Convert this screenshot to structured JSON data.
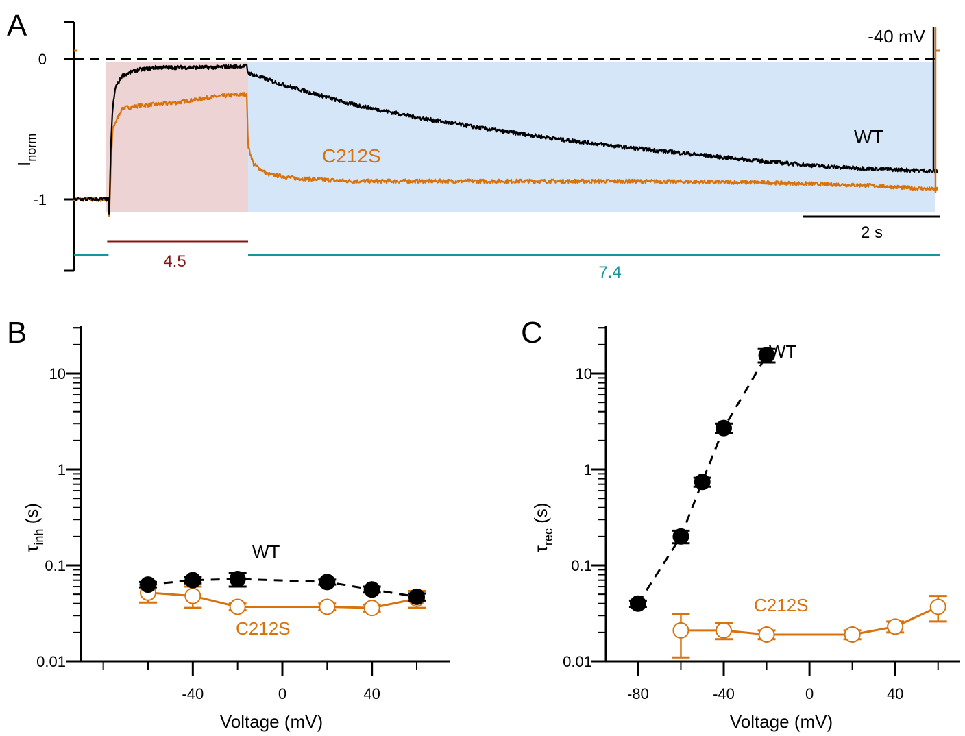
{
  "colors": {
    "wt": "#000000",
    "mut": "#d8720c",
    "inh_bg": "#edd3d3",
    "rec_bg": "#d4e6f8",
    "inh_bar": "#8a1414",
    "rec_bar": "#17949a"
  },
  "panel_labels": {
    "a": "A",
    "b": "B",
    "c": "C"
  },
  "chart_data": [
    {
      "panel": "A",
      "type": "line",
      "ylabel_main": "I",
      "ylabel_sub": "norm",
      "yticks": [
        "0",
        "-1"
      ],
      "ylim": [
        -1.5,
        0.25
      ],
      "xlim_s": [
        0,
        12.5
      ],
      "voltage_label": "-40 mV",
      "scale_bar_label": "2 s",
      "inh_time_label": "4.5",
      "rec_time_label": "7.4",
      "series": [
        {
          "name": "WT",
          "x": [
            0,
            0.5,
            0.51,
            0.53,
            0.56,
            0.6,
            0.7,
            0.9,
            1.2,
            1.5,
            2.0,
            2.5,
            2.52,
            3,
            4,
            5,
            6,
            7,
            8,
            9,
            10,
            11,
            12.5
          ],
          "y": [
            -1.0,
            -1.0,
            -1.15,
            -0.65,
            -0.35,
            -0.2,
            -0.12,
            -0.08,
            -0.06,
            -0.06,
            -0.06,
            -0.05,
            -0.1,
            -0.18,
            -0.32,
            -0.42,
            -0.5,
            -0.57,
            -0.63,
            -0.68,
            -0.73,
            -0.77,
            -0.8
          ]
        },
        {
          "name": "C212S",
          "x": [
            0,
            0.5,
            0.51,
            0.53,
            0.56,
            0.6,
            0.7,
            1.0,
            1.5,
            2.0,
            2.5,
            2.52,
            2.6,
            2.8,
            3.2,
            4,
            6,
            8,
            10,
            11.5,
            12.5
          ],
          "y": [
            -1.0,
            -1.0,
            -1.15,
            -0.8,
            -0.5,
            -0.45,
            -0.35,
            -0.33,
            -0.31,
            -0.27,
            -0.25,
            -0.62,
            -0.75,
            -0.82,
            -0.85,
            -0.87,
            -0.87,
            -0.87,
            -0.88,
            -0.9,
            -0.93
          ]
        }
      ]
    },
    {
      "panel": "B",
      "type": "scatter",
      "xlabel": "Voltage (mV)",
      "ylabel_main": "τ",
      "ylabel_sub": "inh",
      "ylabel_unit": " (s)",
      "y_scale": "log",
      "ylim": [
        0.01,
        30
      ],
      "xlim": [
        -90,
        75
      ],
      "xticks": [
        -40,
        0,
        40
      ],
      "ytick_labels": [
        "10",
        "1",
        "0.1",
        "0.01"
      ],
      "series": [
        {
          "name": "WT",
          "x": [
            -60,
            -40,
            -20,
            20,
            40,
            60
          ],
          "y": [
            0.063,
            0.07,
            0.072,
            0.067,
            0.056,
            0.047
          ],
          "err": [
            0.004,
            0.005,
            0.012,
            0.004,
            0.004,
            0.004
          ]
        },
        {
          "name": "C212S",
          "x": [
            -60,
            -40,
            -20,
            20,
            40,
            60
          ],
          "y": [
            0.052,
            0.048,
            0.037,
            0.037,
            0.036,
            0.045
          ],
          "err": [
            0.011,
            0.012,
            0.003,
            0.003,
            0.003,
            0.009
          ]
        }
      ]
    },
    {
      "panel": "C",
      "type": "scatter",
      "xlabel": "Voltage (mV)",
      "ylabel_main": "τ",
      "ylabel_sub": "rec",
      "ylabel_unit": " (s)",
      "y_scale": "log",
      "ylim": [
        0.01,
        30
      ],
      "xlim": [
        -95,
        70
      ],
      "xticks": [
        -80,
        -40,
        0,
        40
      ],
      "ytick_labels": [
        "10",
        "1",
        "0.1",
        "0.01"
      ],
      "series": [
        {
          "name": "WT",
          "x": [
            -80,
            -60,
            -50,
            -40,
            -20
          ],
          "y": [
            0.04,
            0.2,
            0.74,
            2.7,
            15.5
          ],
          "err": [
            0.003,
            0.03,
            0.08,
            0.3,
            2.5
          ]
        },
        {
          "name": "C212S",
          "x": [
            -60,
            -40,
            -20,
            20,
            40,
            60
          ],
          "y": [
            0.021,
            0.021,
            0.019,
            0.019,
            0.023,
            0.037
          ],
          "err": [
            0.01,
            0.004,
            0.002,
            0.002,
            0.003,
            0.011
          ]
        }
      ]
    }
  ]
}
